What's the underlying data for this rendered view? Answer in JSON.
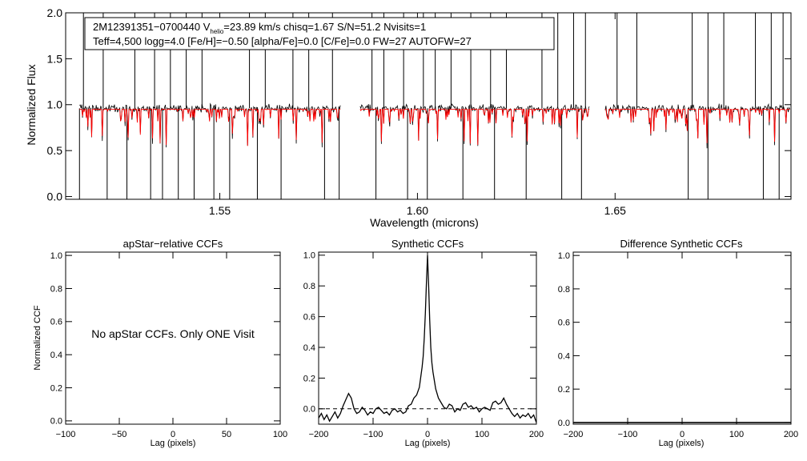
{
  "chart_data": [
    {
      "id": "spectrum",
      "type": "line",
      "xlabel": "Wavelength (microns)",
      "ylabel": "Normalized Flux",
      "xlim": [
        1.511,
        1.6945
      ],
      "ylim": [
        -0.03,
        2.0
      ],
      "xticks": [
        1.55,
        1.6,
        1.65
      ],
      "xtick_labels": [
        "1.55",
        "1.60",
        "1.65"
      ],
      "yticks": [
        0.0,
        0.5,
        1.0,
        1.5,
        2.0
      ],
      "ytick_labels": [
        "0.0",
        "0.5",
        "1.0",
        "1.5",
        "2.0"
      ],
      "chips": [
        [
          1.5145,
          1.5805
        ],
        [
          1.5855,
          1.6435
        ],
        [
          1.6475,
          1.6942
        ]
      ],
      "continuum": 0.96,
      "model_continuum": 0.95,
      "emission_spikes": [
        1.5155,
        1.5205,
        1.5285,
        1.5335,
        1.5375,
        1.5415,
        1.5455,
        1.5575,
        1.5615,
        1.5685,
        1.5725,
        1.5785,
        1.5885,
        1.5915,
        1.5965,
        1.6015,
        1.6045,
        1.6085,
        1.6135,
        1.6185,
        1.6225,
        1.6315,
        1.6355,
        1.6395,
        1.6425,
        1.6505,
        1.6555,
        1.6695,
        1.6735,
        1.6775,
        1.6855,
        1.6895,
        1.6925
      ],
      "absorption_dips": [
        1.5145,
        1.5215,
        1.5265,
        1.5325,
        1.5355,
        1.5395,
        1.5435,
        1.5485,
        1.5525,
        1.5595,
        1.5655,
        1.5765,
        1.5802,
        1.5895,
        1.5975,
        1.6025,
        1.6115,
        1.6195,
        1.6275,
        1.6365,
        1.6415,
        1.6685,
        1.6735,
        1.6875,
        1.6915
      ],
      "legend": {
        "line1_prefix": "2M12391351−0700440  V",
        "line1_sub": "helio",
        "line1_suffix": "=23.89 km/s  chisq=1.67  S/N=51.2  Nvisits=1",
        "line2": "Teff=4,500 logg=4.0 [Fe/H]=−0.50 [alpha/Fe]=0.0 [C/Fe]=0.0 FW=27 AUTOFW=27"
      },
      "series": [
        {
          "name": "observed spectrum",
          "color": "#000000"
        },
        {
          "name": "synthetic model",
          "color": "#ff0000"
        }
      ]
    },
    {
      "id": "apstar_ccf",
      "type": "line",
      "title": "apStar−relative CCFs",
      "xlabel": "Lag (pixels)",
      "ylabel": "Normalized CCF",
      "xlim": [
        -100,
        100
      ],
      "ylim": [
        -0.02,
        1.02
      ],
      "xticks": [
        -100,
        -50,
        0,
        50,
        100
      ],
      "xtick_labels": [
        "−100",
        "−50",
        "0",
        "50",
        "100"
      ],
      "yticks": [
        0.0,
        0.2,
        0.4,
        0.6,
        0.8,
        1.0
      ],
      "ytick_labels": [
        "0.0",
        "0.2",
        "0.4",
        "0.6",
        "0.8",
        "1.0"
      ],
      "annotation": "No apStar CCFs.  Only ONE Visit",
      "series": []
    },
    {
      "id": "synthetic_ccf",
      "type": "line",
      "title": "Synthetic CCFs",
      "xlabel": "Lag (pixels)",
      "ylabel": "",
      "xlim": [
        -200,
        200
      ],
      "ylim": [
        -0.1,
        1.02
      ],
      "xticks": [
        -200,
        -100,
        0,
        100,
        200
      ],
      "xtick_labels": [
        "−200",
        "−100",
        "0",
        "100",
        "200"
      ],
      "yticks": [
        0.0,
        0.2,
        0.4,
        0.6,
        0.8,
        1.0
      ],
      "ytick_labels": [
        "0.0",
        "0.2",
        "0.4",
        "0.6",
        "0.8",
        "1.0"
      ],
      "zero_line": 0.0,
      "series": [
        {
          "name": "CCF",
          "x": [
            -200,
            -195,
            -190,
            -185,
            -180,
            -175,
            -170,
            -165,
            -160,
            -155,
            -150,
            -145,
            -140,
            -135,
            -130,
            -125,
            -120,
            -115,
            -110,
            -105,
            -100,
            -95,
            -90,
            -85,
            -80,
            -75,
            -70,
            -65,
            -60,
            -55,
            -50,
            -45,
            -40,
            -35,
            -30,
            -25,
            -20,
            -15,
            -10,
            -8,
            -6,
            -4,
            -2,
            0,
            2,
            4,
            6,
            8,
            10,
            15,
            20,
            25,
            30,
            35,
            40,
            45,
            50,
            55,
            60,
            65,
            70,
            75,
            80,
            85,
            90,
            95,
            100,
            105,
            110,
            115,
            120,
            125,
            130,
            135,
            140,
            145,
            150,
            155,
            160,
            165,
            170,
            175,
            180,
            185,
            190,
            195,
            200
          ],
          "y": [
            -0.06,
            -0.03,
            -0.07,
            -0.04,
            -0.08,
            -0.05,
            -0.02,
            -0.06,
            -0.03,
            0.02,
            0.06,
            0.1,
            0.07,
            0.0,
            -0.03,
            -0.02,
            0.01,
            -0.01,
            -0.04,
            -0.02,
            -0.03,
            0.0,
            0.01,
            -0.01,
            -0.03,
            -0.02,
            -0.04,
            -0.01,
            0.0,
            -0.02,
            -0.01,
            -0.03,
            -0.02,
            0.02,
            0.03,
            0.07,
            0.09,
            0.14,
            0.27,
            0.34,
            0.46,
            0.62,
            0.82,
            1.0,
            0.81,
            0.58,
            0.4,
            0.3,
            0.24,
            0.13,
            0.07,
            0.04,
            0.01,
            0.0,
            0.03,
            0.02,
            -0.02,
            0.0,
            -0.01,
            0.03,
            0.04,
            0.01,
            0.02,
            0.0,
            0.01,
            -0.02,
            0.0,
            0.01,
            0.0,
            -0.01,
            0.04,
            0.05,
            0.03,
            0.04,
            0.07,
            0.03,
            0.0,
            -0.03,
            -0.05,
            -0.03,
            -0.06,
            -0.04,
            -0.05,
            -0.03,
            -0.06,
            -0.04,
            -0.09
          ],
          "color": "#000000"
        }
      ]
    },
    {
      "id": "difference_ccf",
      "type": "line",
      "title": "Difference Synthetic CCFs",
      "xlabel": "Lag (pixels)",
      "ylabel": "",
      "xlim": [
        -200,
        200
      ],
      "ylim": [
        -0.01,
        1.02
      ],
      "xticks": [
        -200,
        -100,
        0,
        100,
        200
      ],
      "xtick_labels": [
        "−200",
        "−100",
        "0",
        "100",
        "200"
      ],
      "yticks": [
        0.0,
        0.2,
        0.4,
        0.6,
        0.8,
        1.0
      ],
      "ytick_labels": [
        "0.0",
        "0.2",
        "0.4",
        "0.6",
        "0.8",
        "1.0"
      ],
      "series": [
        {
          "name": "difference",
          "x": [
            -200,
            200
          ],
          "y": [
            0.0,
            0.0
          ],
          "color": "#000000"
        }
      ]
    }
  ]
}
